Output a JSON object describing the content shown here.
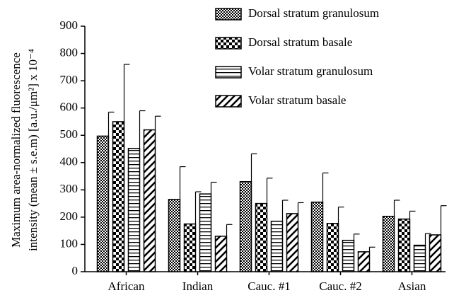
{
  "chart_data": {
    "type": "bar",
    "categories": [
      "African",
      "Indian",
      "Cauc. #1",
      "Cauc. #2",
      "Asian"
    ],
    "ylabel": [
      "Maximum area-normalized fluorescence",
      "intensity (mean ± s.e.m) [a.u./μm²] x 10⁻⁴"
    ],
    "ylim": [
      0,
      900
    ],
    "yticks": [
      0,
      100,
      200,
      300,
      400,
      500,
      600,
      700,
      800,
      900
    ],
    "legend": "upper right",
    "series": [
      {
        "name": "Dorsal stratum granulosum",
        "color": "#000000",
        "pattern": "fine-checker",
        "values": [
          497,
          265,
          330,
          255,
          203
        ],
        "errors": [
          88,
          120,
          102,
          107,
          59
        ]
      },
      {
        "name": "Dorsal stratum basale",
        "color": "#000000",
        "pattern": "checker",
        "values": [
          550,
          175,
          250,
          177,
          193
        ],
        "errors": [
          210,
          118,
          93,
          60,
          29
        ]
      },
      {
        "name": "Volar stratum granulosum",
        "color": "#000000",
        "pattern": "horizontal",
        "values": [
          452,
          285,
          185,
          115,
          97
        ],
        "errors": [
          138,
          43,
          77,
          23,
          43
        ]
      },
      {
        "name": "Volar stratum basale",
        "color": "#000000",
        "pattern": "diagonal",
        "values": [
          520,
          130,
          213,
          73,
          135
        ],
        "errors": [
          50,
          43,
          40,
          17,
          107
        ]
      }
    ]
  }
}
